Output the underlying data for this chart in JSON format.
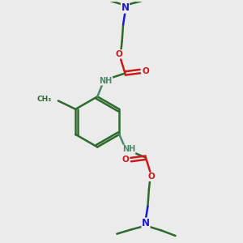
{
  "bg_color": "#ebebeb",
  "bond_color": "#2d6b2d",
  "N_color": "#1a1acc",
  "O_color": "#cc1a1a",
  "NH_color": "#4a8a6a",
  "line_width": 1.8,
  "fig_size": [
    3.0,
    3.0
  ],
  "dpi": 100,
  "xlim": [
    0,
    10
  ],
  "ylim": [
    0,
    10
  ]
}
